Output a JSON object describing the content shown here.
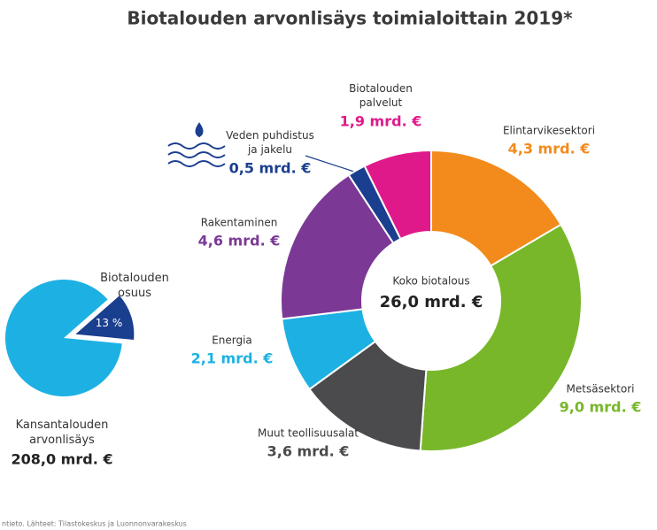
{
  "chart_data": [
    {
      "type": "donut",
      "title": "Biotalouden arvonlisäys toimialoittain 2019*",
      "center_label": "Koko biotalous",
      "total": 26.0,
      "total_label": "26,0 mrd. €",
      "categories": [
        "Elintarvikesektori",
        "Metsäsektori",
        "Muut teollisuusalat",
        "Energia",
        "Rakentaminen",
        "Veden puhdistus\nja jakelu",
        "Biotalouden\npalvelut"
      ],
      "values": [
        4.3,
        9.0,
        3.6,
        2.1,
        4.6,
        0.5,
        1.9
      ],
      "value_labels": [
        "4,3 mrd. €",
        "9,0 mrd. €",
        "3,6 mrd. €",
        "2,1 mrd. €",
        "4,6 mrd. €",
        "0,5 mrd. €",
        "1,9 mrd. €"
      ],
      "colors": [
        "#f28b1c",
        "#78b72a",
        "#4b4b4d",
        "#1db1e3",
        "#7b3995",
        "#1b3f8f",
        "#e0198b"
      ]
    },
    {
      "type": "pie",
      "slice_label": "Biotalouden\nosuus",
      "values": [
        13
      ],
      "value_labels": [
        "13 %"
      ],
      "colors": [
        "#1b3f8f",
        "#1db1e3"
      ],
      "whole_label": "Kansantalouden\narvonlisäys",
      "whole_value": 208.0,
      "whole_value_label": "208,0 mrd. €"
    },
    {
      "type": "note",
      "source": "ntieto. Lähteet: Tilastokeskus ja Luonnonvarakeskus"
    }
  ]
}
